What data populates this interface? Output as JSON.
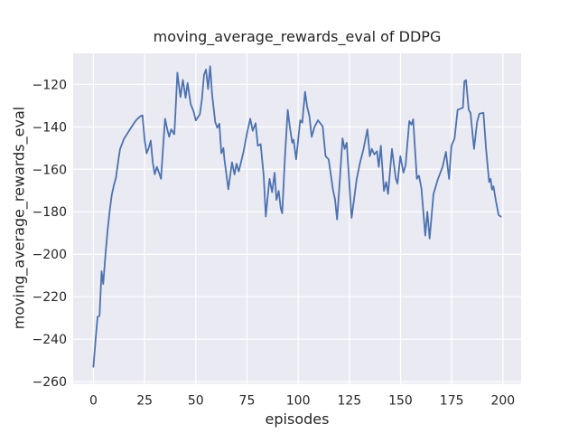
{
  "chart_data": {
    "type": "line",
    "title": "moving_average_rewards_eval of DDPG",
    "xlabel": "episodes",
    "ylabel": "moving_average_rewards_eval",
    "xticks": [
      0,
      25,
      50,
      75,
      100,
      125,
      150,
      175,
      200
    ],
    "yticks": [
      -260,
      -240,
      -220,
      -200,
      -180,
      -160,
      -140,
      -120
    ],
    "xlim": [
      -9.9,
      208.9
    ],
    "ylim": [
      -261.0,
      -105.4
    ],
    "grid": true,
    "legend": "none",
    "colors": {
      "line": "#4c72b0",
      "plot_background": "#eaeaf2",
      "gridline": "#ffffff",
      "text": "#262626",
      "figure_background": "#ffffff"
    },
    "series": [
      {
        "name": "moving_average_rewards_eval",
        "points": [
          [
            0,
            -253
          ],
          [
            1,
            -241
          ],
          [
            2,
            -229.5
          ],
          [
            3,
            -229
          ],
          [
            4,
            -208
          ],
          [
            4.8,
            -214
          ],
          [
            6,
            -199
          ],
          [
            7,
            -188
          ],
          [
            8,
            -179
          ],
          [
            9,
            -172
          ],
          [
            10,
            -167.5
          ],
          [
            11,
            -164
          ],
          [
            12,
            -157
          ],
          [
            13,
            -150.5
          ],
          [
            14,
            -148
          ],
          [
            15,
            -145.5
          ],
          [
            16,
            -144
          ],
          [
            17,
            -142.5
          ],
          [
            18,
            -141
          ],
          [
            19,
            -139.5
          ],
          [
            20,
            -138
          ],
          [
            21,
            -136.8
          ],
          [
            22,
            -135.8
          ],
          [
            23,
            -135
          ],
          [
            24,
            -134.6
          ],
          [
            25,
            -146
          ],
          [
            26,
            -152.5
          ],
          [
            27,
            -150
          ],
          [
            28,
            -146.5
          ],
          [
            29,
            -157
          ],
          [
            30,
            -162.3
          ],
          [
            31,
            -158.8
          ],
          [
            32,
            -161.5
          ],
          [
            33,
            -164.5
          ],
          [
            34,
            -150
          ],
          [
            35,
            -136.2
          ],
          [
            36,
            -141
          ],
          [
            37,
            -144.7
          ],
          [
            38,
            -141.2
          ],
          [
            39.5,
            -143.5
          ],
          [
            40,
            -135
          ],
          [
            41,
            -114.5
          ],
          [
            42.5,
            -126
          ],
          [
            43.7,
            -117.9
          ],
          [
            45,
            -126.4
          ],
          [
            46,
            -119.3
          ],
          [
            47.5,
            -129.2
          ],
          [
            49,
            -133
          ],
          [
            50,
            -137
          ],
          [
            51,
            -135.5
          ],
          [
            52,
            -134.1
          ],
          [
            53,
            -127
          ],
          [
            54,
            -115.5
          ],
          [
            55,
            -113
          ],
          [
            56,
            -122.2
          ],
          [
            57,
            -111.5
          ],
          [
            58,
            -125
          ],
          [
            59.5,
            -137.7
          ],
          [
            60.5,
            -140.4
          ],
          [
            61.5,
            -138.5
          ],
          [
            62.5,
            -152.5
          ],
          [
            63.5,
            -150
          ],
          [
            64,
            -155.3
          ],
          [
            65.9,
            -169.4
          ],
          [
            67.7,
            -156.7
          ],
          [
            68.9,
            -162.4
          ],
          [
            69.9,
            -157.4
          ],
          [
            71,
            -161
          ],
          [
            73.3,
            -151.8
          ],
          [
            75,
            -143
          ],
          [
            76.6,
            -136.2
          ],
          [
            77.8,
            -141.9
          ],
          [
            79.2,
            -138.3
          ],
          [
            80.3,
            -148.9
          ],
          [
            81.7,
            -148.2
          ],
          [
            83.2,
            -163.1
          ],
          [
            84.2,
            -182.2
          ],
          [
            86,
            -164.5
          ],
          [
            87.3,
            -170.8
          ],
          [
            88.5,
            -161.6
          ],
          [
            89.4,
            -174.4
          ],
          [
            90.5,
            -170.2
          ],
          [
            91.5,
            -178.6
          ],
          [
            92.2,
            -180.7
          ],
          [
            93.5,
            -155
          ],
          [
            94.9,
            -132
          ],
          [
            95.9,
            -139.8
          ],
          [
            97.1,
            -147.5
          ],
          [
            97.8,
            -146.1
          ],
          [
            99,
            -155.3
          ],
          [
            101,
            -136.9
          ],
          [
            102,
            -138
          ],
          [
            103.4,
            -123.5
          ],
          [
            104.4,
            -130.6
          ],
          [
            105.5,
            -135
          ],
          [
            106.6,
            -144.7
          ],
          [
            108,
            -140
          ],
          [
            109.7,
            -136.9
          ],
          [
            112,
            -139.8
          ],
          [
            113.4,
            -153.8
          ],
          [
            114.9,
            -155.3
          ],
          [
            117,
            -169.6
          ],
          [
            118,
            -174
          ],
          [
            119,
            -183.6
          ],
          [
            120,
            -170
          ],
          [
            121.7,
            -145.4
          ],
          [
            122.7,
            -150.4
          ],
          [
            123.7,
            -147.5
          ],
          [
            126.1,
            -182.9
          ],
          [
            128.6,
            -164.5
          ],
          [
            130.1,
            -157.4
          ],
          [
            132,
            -150
          ],
          [
            133.8,
            -141.2
          ],
          [
            135,
            -153.8
          ],
          [
            136,
            -150.4
          ],
          [
            137.2,
            -153
          ],
          [
            138.5,
            -151.5
          ],
          [
            139.4,
            -158.9
          ],
          [
            140.4,
            -148.9
          ],
          [
            141.9,
            -170.2
          ],
          [
            143,
            -166
          ],
          [
            143.9,
            -171.6
          ],
          [
            145.8,
            -150.4
          ],
          [
            147.7,
            -164.5
          ],
          [
            148.5,
            -166.7
          ],
          [
            149.9,
            -153.8
          ],
          [
            151.4,
            -161.6
          ],
          [
            152.5,
            -158
          ],
          [
            154.3,
            -137.3
          ],
          [
            155.3,
            -139
          ],
          [
            156.2,
            -136.5
          ],
          [
            158,
            -164.5
          ],
          [
            159,
            -163
          ],
          [
            160.2,
            -168.8
          ],
          [
            162.1,
            -191.2
          ],
          [
            163.1,
            -180
          ],
          [
            164.2,
            -192.6
          ],
          [
            166.1,
            -171.6
          ],
          [
            168.3,
            -164.5
          ],
          [
            170.5,
            -158.9
          ],
          [
            172.2,
            -151.8
          ],
          [
            173.7,
            -164.5
          ],
          [
            174.9,
            -148.9
          ],
          [
            176.4,
            -145.5
          ],
          [
            177.9,
            -132
          ],
          [
            180.5,
            -131
          ],
          [
            181.2,
            -118.6
          ],
          [
            182,
            -118
          ],
          [
            183.3,
            -132
          ],
          [
            184.2,
            -133.5
          ],
          [
            185.9,
            -150.4
          ],
          [
            187.4,
            -137.6
          ],
          [
            188.5,
            -133.8
          ],
          [
            190.5,
            -133.4
          ],
          [
            191.8,
            -150.4
          ],
          [
            193.3,
            -166
          ],
          [
            194,
            -164.5
          ],
          [
            194.7,
            -169.6
          ],
          [
            195.4,
            -168
          ],
          [
            196.5,
            -174.4
          ],
          [
            197.9,
            -181.5
          ],
          [
            199,
            -182.3
          ]
        ]
      }
    ]
  }
}
